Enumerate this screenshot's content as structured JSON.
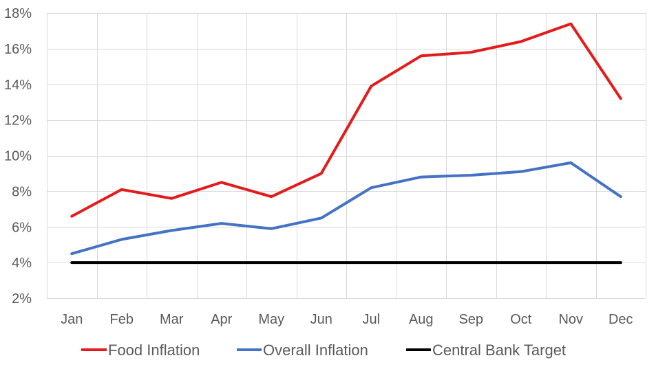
{
  "chart_data": {
    "type": "line",
    "categories": [
      "Jan",
      "Feb",
      "Mar",
      "Apr",
      "May",
      "Jun",
      "Jul",
      "Aug",
      "Sep",
      "Oct",
      "Nov",
      "Dec"
    ],
    "series": [
      {
        "name": "Food Inflation",
        "color": "#e31b1b",
        "values": [
          6.6,
          8.1,
          7.6,
          8.5,
          7.7,
          9.0,
          13.9,
          15.6,
          15.8,
          16.4,
          17.4,
          13.2
        ]
      },
      {
        "name": "Overall Inflation",
        "color": "#4472c4",
        "values": [
          4.5,
          5.3,
          5.8,
          6.2,
          5.9,
          6.5,
          8.2,
          8.8,
          8.9,
          9.1,
          9.6,
          7.7
        ]
      },
      {
        "name": "Central Bank Target",
        "color": "#000000",
        "values": [
          4,
          4,
          4,
          4,
          4,
          4,
          4,
          4,
          4,
          4,
          4,
          4
        ]
      }
    ],
    "ylim": [
      2,
      18
    ],
    "yticks": [
      "2%",
      "4%",
      "6%",
      "8%",
      "10%",
      "12%",
      "14%",
      "16%",
      "18%"
    ],
    "ytick_values": [
      2,
      4,
      6,
      8,
      10,
      12,
      14,
      16,
      18
    ],
    "grid": true,
    "legend_position": "bottom",
    "title": "",
    "xlabel": "",
    "ylabel": ""
  }
}
